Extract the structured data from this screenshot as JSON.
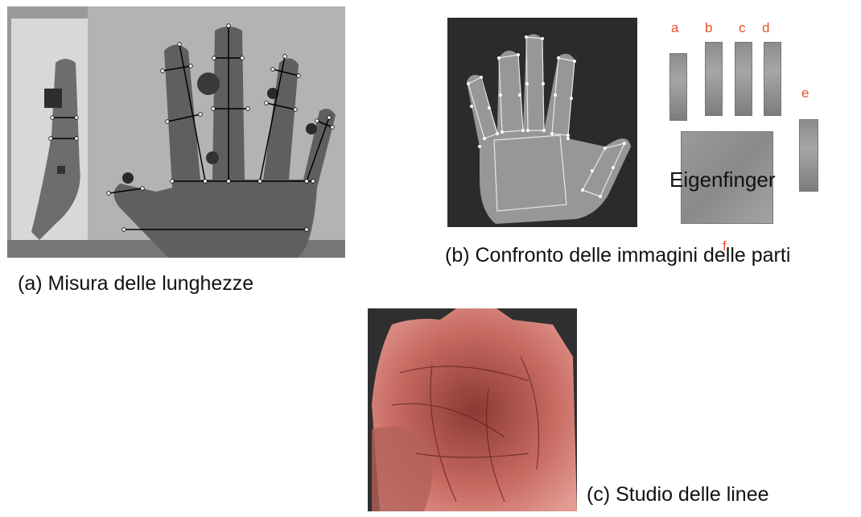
{
  "panels": {
    "a": {
      "caption": "(a) Misura delle lunghezze"
    },
    "b": {
      "caption": "(b) Confronto delle immagini delle parti",
      "part_labels": [
        "a",
        "b",
        "c",
        "d",
        "e",
        "f"
      ],
      "center_label": "Eigenfinger",
      "label_color": "#e8502a"
    },
    "c": {
      "caption": "(c) Studio delle linee"
    }
  }
}
